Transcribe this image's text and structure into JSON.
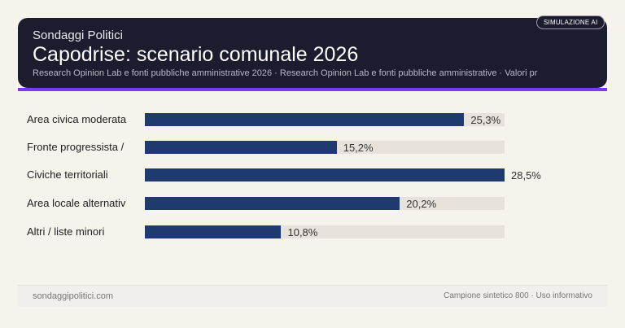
{
  "header": {
    "kicker": "Sondaggi Politici",
    "title": "Capodrise: scenario comunale 2026",
    "subtitle": "Research Opinion Lab e fonti pubbliche amministrative 2026 · Research Opinion Lab e fonti pubbliche amministrative · Valori pr",
    "badge": "SIMULAZIONE AI"
  },
  "chart_data": {
    "type": "bar",
    "orientation": "horizontal",
    "categories": [
      "Area civica moderata",
      "Fronte progressista /",
      "Civiche territoriali",
      "Area locale alternativ",
      "Altri / liste minori"
    ],
    "values": [
      25.3,
      15.2,
      28.5,
      20.2,
      10.8
    ],
    "value_labels": [
      "25,3%",
      "15,2%",
      "28,5%",
      "20,2%",
      "10,8%"
    ],
    "xlim": [
      0,
      28.5
    ],
    "bar_color": "#1f3a6e",
    "track_color": "#e7e2db",
    "grid": false
  },
  "footer": {
    "left": "sondaggipolitici.com",
    "right": "Campione sintetico 800 · Uso informativo"
  },
  "colors": {
    "header_bg": "#1b1c2e",
    "accent": "#7c3aed"
  }
}
